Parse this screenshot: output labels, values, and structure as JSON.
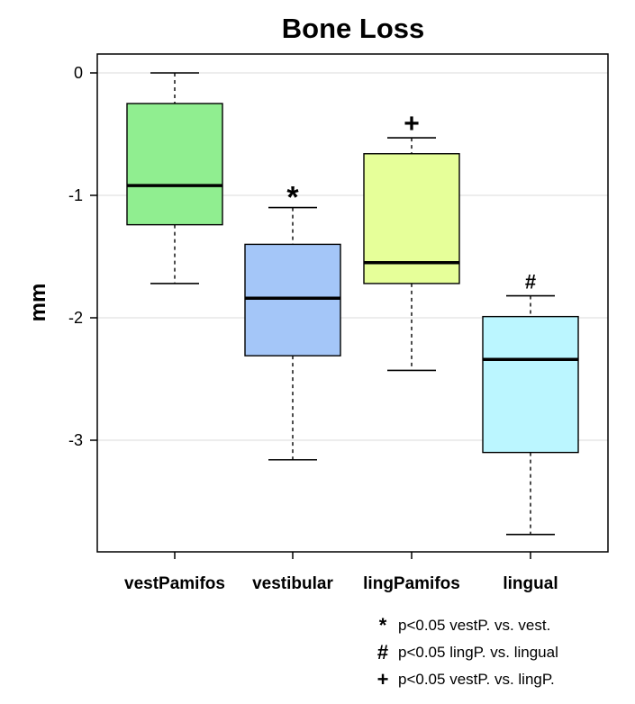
{
  "chart_data": {
    "type": "boxplot",
    "title": "Bone Loss",
    "xlabel": "",
    "ylabel": "mm",
    "ylim": [
      -3.9,
      0.15
    ],
    "yticks": [
      0,
      -1,
      -2,
      -3
    ],
    "ytick_labels": [
      "0",
      "-1",
      "-2",
      "-3"
    ],
    "grid": "horizontal",
    "categories": [
      "vestPamifos",
      "vestibular",
      "lingPamifos",
      "lingual"
    ],
    "boxes": [
      {
        "name": "vestPamifos",
        "whisker_low": -1.72,
        "q1": -1.24,
        "median": -0.92,
        "q3": -0.25,
        "whisker_high": 0.0,
        "color": "#90EE90",
        "marker": ""
      },
      {
        "name": "vestibular",
        "whisker_low": -3.16,
        "q1": -2.31,
        "median": -1.84,
        "q3": -1.4,
        "whisker_high": -1.1,
        "color": "#A4C6F8",
        "marker": "*"
      },
      {
        "name": "lingPamifos",
        "whisker_low": -2.43,
        "q1": -1.72,
        "median": -1.55,
        "q3": -0.66,
        "whisker_high": -0.53,
        "color": "#E6FF99",
        "marker": "+"
      },
      {
        "name": "lingual",
        "whisker_low": -3.77,
        "q1": -3.1,
        "median": -2.34,
        "q3": -1.99,
        "whisker_high": -1.82,
        "color": "#BBF6FF",
        "marker": "#"
      }
    ],
    "legend": [
      {
        "symbol": "*",
        "text": "p<0.05 vestP. vs. vest."
      },
      {
        "symbol": "#",
        "text": "p<0.05 lingP. vs. lingual"
      },
      {
        "symbol": "+",
        "text": "p<0.05 vestP. vs. lingP."
      }
    ]
  }
}
